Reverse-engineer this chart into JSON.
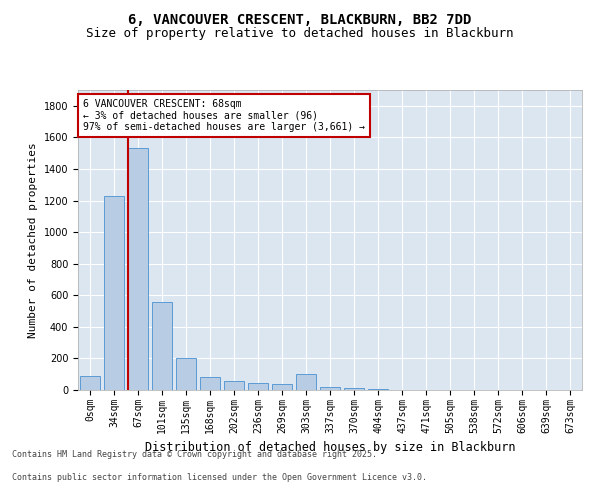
{
  "title": "6, VANCOUVER CRESCENT, BLACKBURN, BB2 7DD",
  "subtitle": "Size of property relative to detached houses in Blackburn",
  "xlabel": "Distribution of detached houses by size in Blackburn",
  "ylabel": "Number of detached properties",
  "bar_labels": [
    "0sqm",
    "34sqm",
    "67sqm",
    "101sqm",
    "135sqm",
    "168sqm",
    "202sqm",
    "236sqm",
    "269sqm",
    "303sqm",
    "337sqm",
    "370sqm",
    "404sqm",
    "437sqm",
    "471sqm",
    "505sqm",
    "538sqm",
    "572sqm",
    "606sqm",
    "639sqm",
    "673sqm"
  ],
  "bar_values": [
    90,
    1230,
    1530,
    560,
    205,
    80,
    55,
    45,
    35,
    100,
    20,
    10,
    5,
    3,
    2,
    1,
    1,
    0,
    0,
    0,
    0
  ],
  "bar_color": "#b8cce4",
  "bar_edge_color": "#5b9bd5",
  "vline_color": "#c00000",
  "annotation_text": "6 VANCOUVER CRESCENT: 68sqm\n← 3% of detached houses are smaller (96)\n97% of semi-detached houses are larger (3,661) →",
  "annotation_box_color": "#ffffff",
  "annotation_box_edge": "#c00000",
  "ylim": [
    0,
    1900
  ],
  "yticks": [
    0,
    200,
    400,
    600,
    800,
    1000,
    1200,
    1400,
    1600,
    1800
  ],
  "footer_line1": "Contains HM Land Registry data © Crown copyright and database right 2025.",
  "footer_line2": "Contains public sector information licensed under the Open Government Licence v3.0.",
  "plot_bg_color": "#dce6f1",
  "title_fontsize": 10,
  "subtitle_fontsize": 9,
  "tick_fontsize": 7,
  "xlabel_fontsize": 8.5,
  "ylabel_fontsize": 8,
  "footer_fontsize": 6,
  "annot_fontsize": 7
}
